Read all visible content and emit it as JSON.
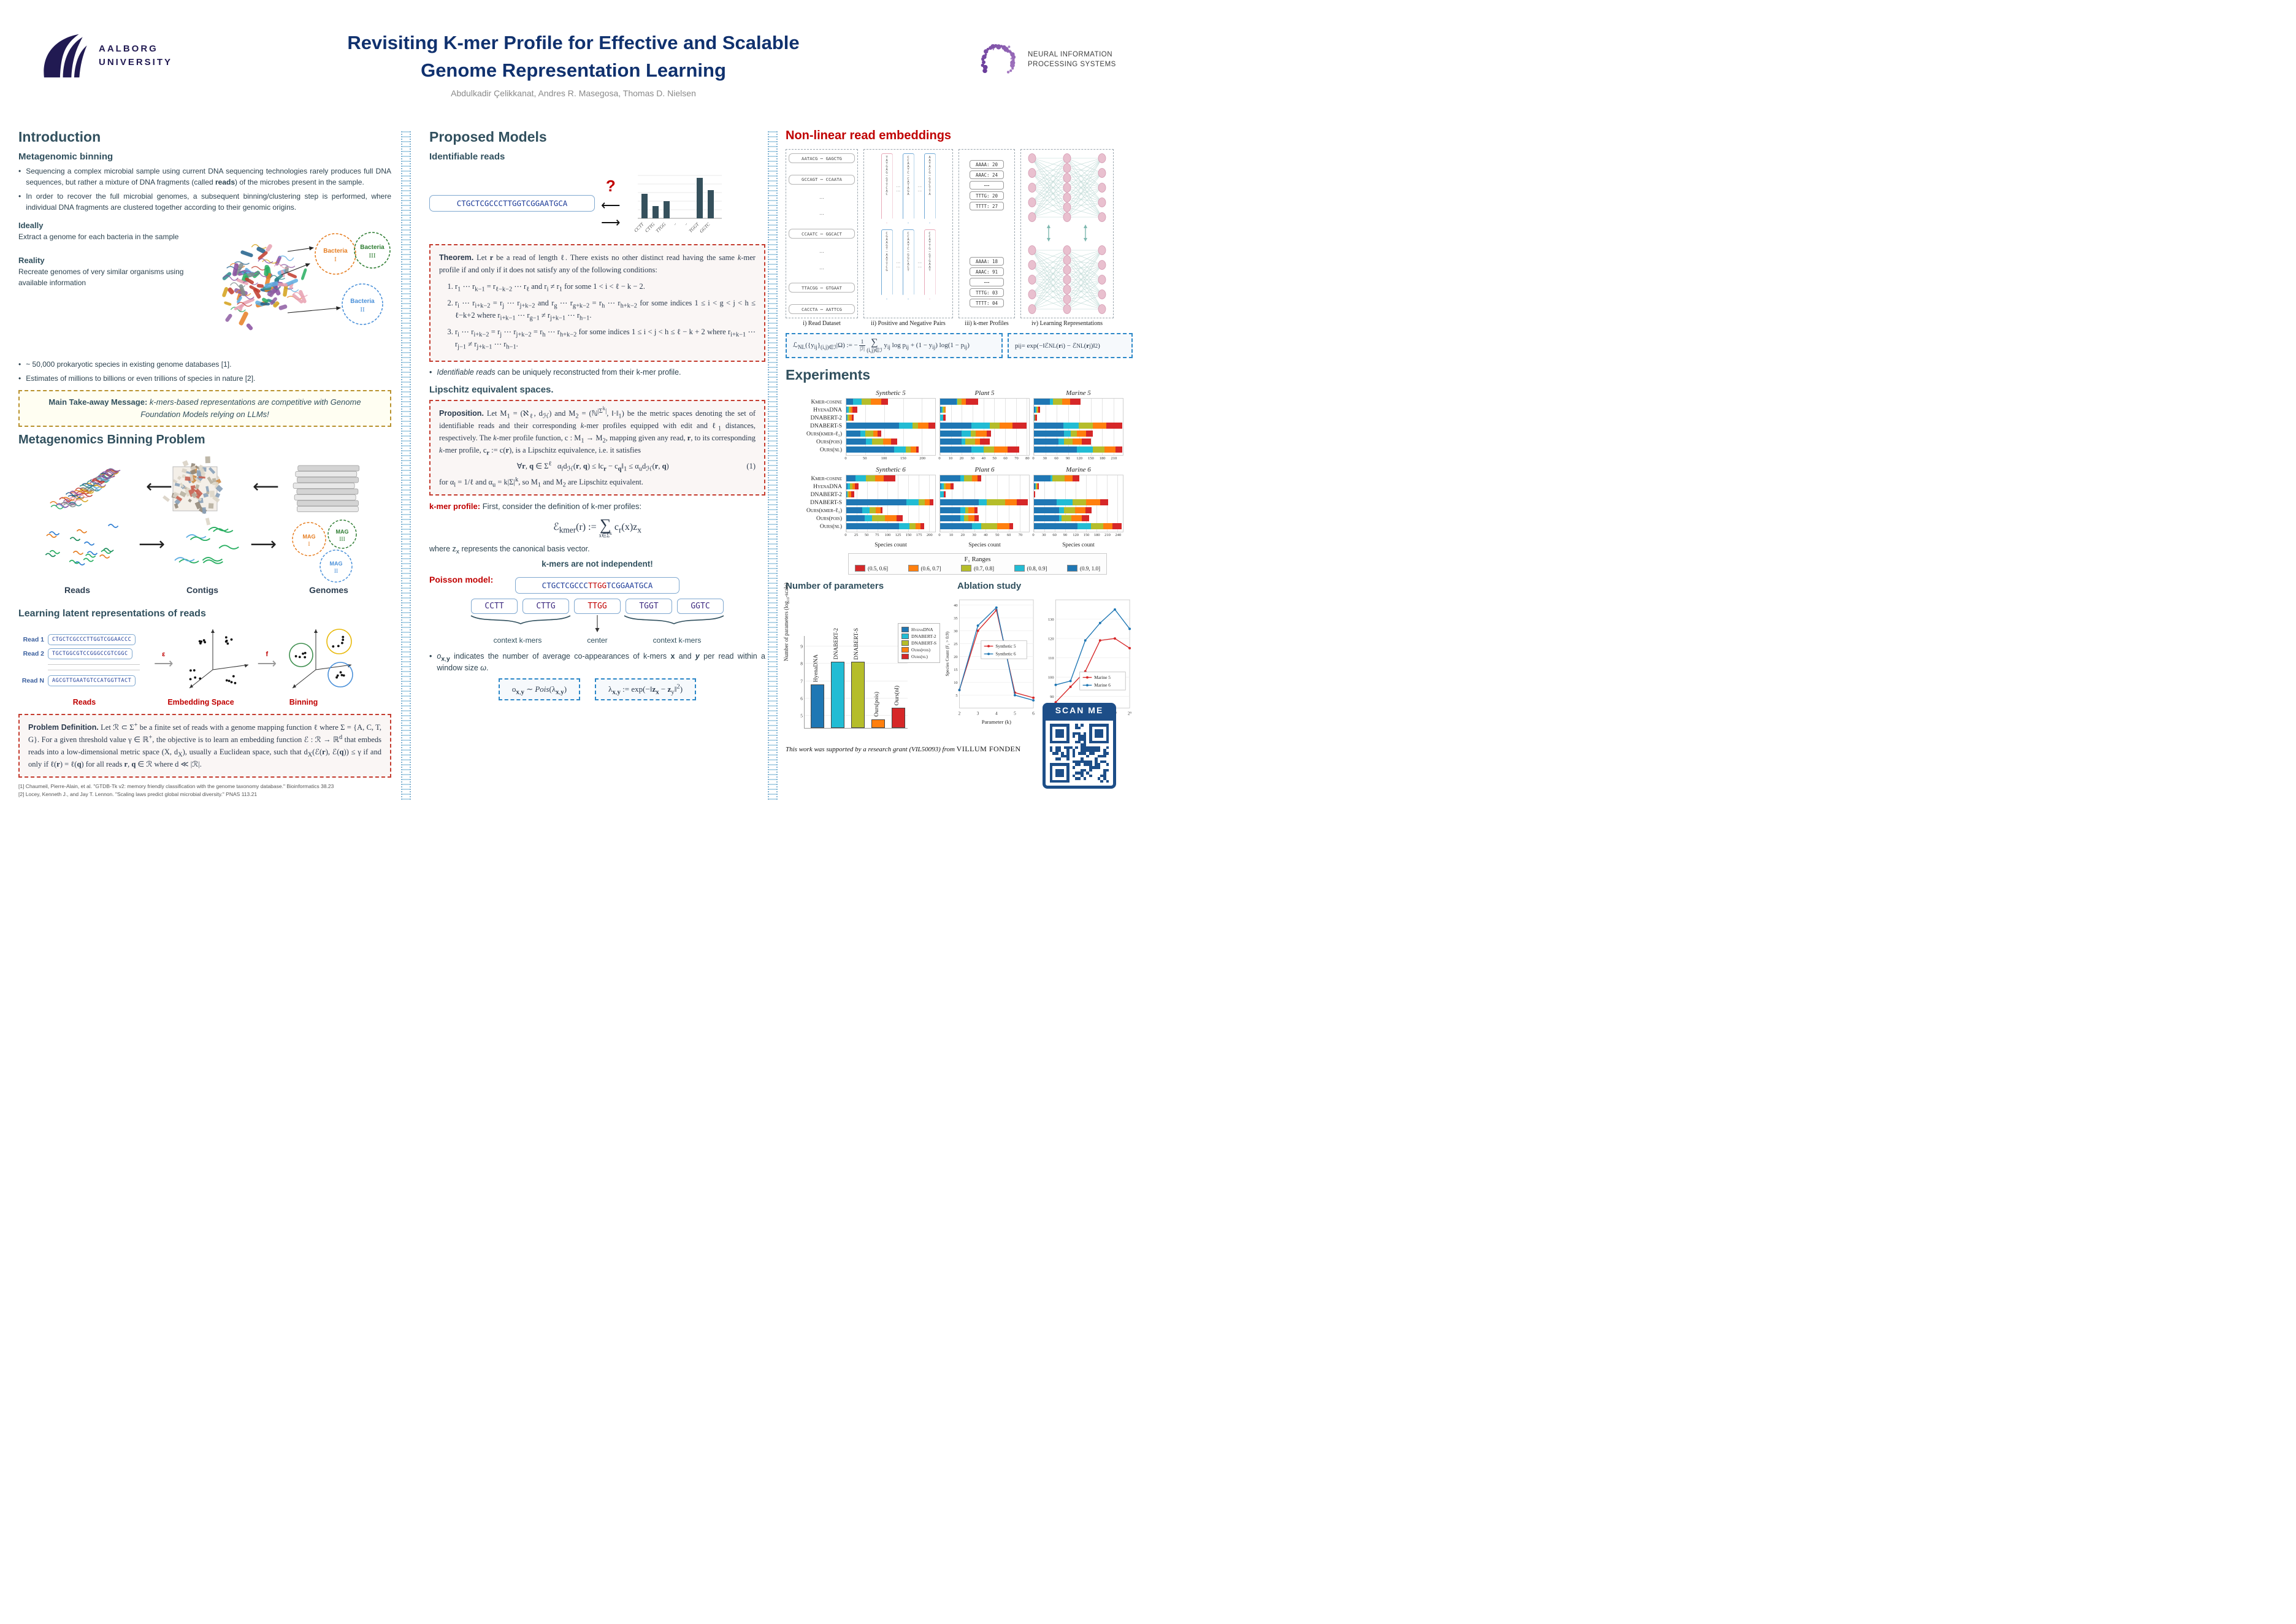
{
  "header": {
    "title_line1": "Revisiting K-mer Profile for Effective and Scalable",
    "title_line2": "Genome Representation Learning",
    "authors": "Abdulkadir Çelikkanat, Andres R. Masegosa, Thomas D. Nielsen",
    "aalborg_line1": "AALBORG",
    "aalborg_line2": "UNIVERSITY",
    "neurips_line1": "NEURAL INFORMATION",
    "neurips_line2": "PROCESSING SYSTEMS"
  },
  "intro": {
    "heading": "Introduction",
    "binning_heading": "Metagenomic binning",
    "bullet1_html": "Sequencing a complex microbial sample using current DNA sequencing technologies rarely produces full DNA sequences, but rather a mixture of DNA fragments (called <b>reads</b>) of the microbes present in the sample.",
    "bullet2_html": "In order to recover the full microbial genomes, a subsequent binning/clustering step is performed, where individual DNA fragments are clustered together according to their genomic origins.",
    "ideally_label": "Ideally",
    "ideally_text": "Extract a genome for each bacteria in the sample",
    "reality_label": "Reality",
    "reality_text": "Recreate genomes of very similar organisms using available information",
    "bacteria": [
      {
        "name": "Bacteria",
        "num": "I",
        "color": "#e67e22"
      },
      {
        "name": "Bacteria",
        "num": "III",
        "color": "#2e7d32"
      },
      {
        "name": "Bacteria",
        "num": "II",
        "color": "#4a90d9"
      }
    ],
    "bullet3": "~ 50,000 prokaryotic species in existing genome databases [1].",
    "bullet4": "Estimates of millions to billions or even trillions of species in nature [2].",
    "takeaway_html": "<b>Main Take-away Message:</b> <i>k-mers-based representations are competitive with Genome Foundation Models relying on LLMs!</i>"
  },
  "binning_problem": {
    "heading": "Metagenomics Binning Problem",
    "labels": [
      "Reads",
      "Contigs",
      "Genomes"
    ],
    "mags": [
      {
        "label": "MAG",
        "num": "I",
        "color": "#e67e22"
      },
      {
        "label": "MAG",
        "num": "III",
        "color": "#2e7d32"
      },
      {
        "label": "MAG",
        "num": "II",
        "color": "#4a90d9"
      }
    ]
  },
  "latent": {
    "heading": "Learning latent representations of reads",
    "reads": [
      {
        "label": "Read 1",
        "seq": "CTGCTCGCCCTTGGTCGGAACCC"
      },
      {
        "label": "Read 2",
        "seq": "TGCTGGCGTCCGGGCCGTCGGC"
      },
      {
        "label": "Read N",
        "seq": "AGCGTTGAATGTCCATGGTTACT"
      }
    ],
    "eps": "ε",
    "f": "f",
    "stages": [
      "Reads",
      "Embedding Space",
      "Binning"
    ],
    "problem_html": "<b style=font-family:sans-serif>Problem Definition.</b> Let ℛ ⊂ Σ<sup>+</sup> be a finite set of reads with a genome mapping function ℓ where Σ = {A, C, T, G}. For a given threshold value γ ∈ ℝ<sup>+</sup>, the objective is to learn an embedding function ℰ : ℛ → ℝ<sup>d</sup> that embeds reads into a low-dimensional metric space (X, d<sub>X</sub>), usually a Euclidean space, such that d<sub>X</sub>(ℰ(<b>r</b>), ℰ(<b>q</b>)) ≤ γ if and only if ℓ(<b>r</b>) = ℓ(<b>q</b>) for all reads <b>r</b>, <b>q</b> ∈ ℛ where d ≪ |ℛ|."
  },
  "references": [
    "[1] Chaumeil, Pierre-Alain, et al. \"GTDB-Tk v2: memory friendly classification with the genome taxonomy database.\" Bioinformatics 38.23",
    "[2] Locey, Kenneth J., and Jay T. Lennon. \"Scaling laws predict global microbial diversity.\" PNAS 113.21"
  ],
  "proposed": {
    "heading": "Proposed Models",
    "identifiable_heading": "Identifiable reads",
    "read_seq": "CTGCTCGCCCTTGGTCGGAATGCA",
    "question_mark": "?",
    "theorem_html": "<b style=font-family:sans-serif>Theorem.</b> Let <b>r</b> be a read of length ℓ. There exists no other distinct read having the same <i>k</i>-mer profile if and only if it does not satisfy any of the following conditions:",
    "conditions_html": [
      "r<sub>1</sub> ⋯ r<sub>k−1</sub> = r<sub>ℓ−k−2</sub> ⋯ r<sub>ℓ</sub> and r<sub>i</sub> ≠ r<sub>1</sub> for some 1 &lt; i &lt; ℓ − k − 2.",
      "r<sub>i</sub> ⋯ r<sub>i+k−2</sub> = r<sub>j</sub> ⋯ r<sub>j+k−2</sub> and r<sub>g</sub> ⋯ r<sub>g+k−2</sub> = r<sub>h</sub> ⋯ r<sub>h+k−2</sub> for some indices 1 ≤ i &lt; g &lt; j &lt; h ≤ ℓ−k+2 where r<sub>i+k−1</sub> ⋯ r<sub>g−1</sub> ≠ r<sub>j+k−1</sub> ⋯ r<sub>h−1</sub>.",
      "r<sub>i</sub> ⋯ r<sub>i+k−2</sub> = r<sub>j</sub> ⋯ r<sub>j+k−2</sub> = r<sub>h</sub> ⋯ r<sub>h+k−2</sub> for some indices 1 ≤ i &lt; j &lt; h ≤ ℓ − k + 2 where r<sub>i+k−1</sub> ⋯ r<sub>j−1</sub> ≠ r<sub>j+k−1</sub> ⋯ r<sub>h−1</sub>."
    ],
    "identifiable_note_html": "<i>Identifiable reads</i> can be uniquely reconstructed from their k-mer profile.",
    "lipschitz_heading": "Lipschitz equivalent spaces.",
    "proposition_html": "<b style=font-family:sans-serif>Proposition.</b> Let M<sub>1</sub> = (ℵ<sub>ℓ</sub>, d<sub>ℋ</sub>) and M<sub>2</sub> = (ℕ<sup>|Σ<sup>k</sup>|</sup>, ‖·‖<sub>1</sub>) be the metric spaces denoting the set of identifiable reads and their corresponding <i>k</i>-mer profiles equipped with edit and ℓ<sub>1</sub> distances, respectively. The <i>k</i>-mer profile function, c : M<sub>1</sub> → M<sub>2</sub>, mapping given any read, <b>r</b>, to its corresponding <i>k</i>-mer profile, c<sub><b>r</b></sub> := c(<b>r</b>), is a Lipschitz equivalence, i.e. it satisfies",
    "prop_eq_html": "∀<b>r</b>, <b>q</b> ∈ Σ<sup>ℓ</sup> &nbsp; α<sub>l</sub>d<sub>ℋ</sub>(<b>r</b>, <b>q</b>) ≤ ‖c<sub><b>r</b></sub> − c<sub><b>q</b></sub>‖<sub>1</sub> ≤ α<sub>u</sub>d<sub>ℋ</sub>(<b>r</b>, <b>q</b>)",
    "eq_number": "(1)",
    "prop_tail_html": "for α<sub>l</sub> = 1/ℓ and α<sub>u</sub> = k|Σ|<sup>k</sup>, so M<sub>1</sub> and M<sub>2</sub> are Lipschitz equivalent.",
    "kmer_profile_label": "k-mer profile:",
    "kmer_profile_text": " First, consider the definition of k-mer profiles:",
    "kmer_formula_html": "ℰ<sub>kmer</sub>(r) := <span class=sumwrap><span class=sumsym>∑</span><span class=sumsub>x∈Σ<sup>k</sup></span></span> c<sub>r</sub>(x)z<sub>x</sub>",
    "basis_note_html": "where z<sub>x</sub> represents the canonical basis vector.",
    "not_independent": "k-mers are not independent!",
    "poisson_label": "Poisson model:",
    "poisson_read_html": "CTGCTCGCCC<span class=seq-red>TTGG</span>TCGGAATGCA",
    "kmers": [
      {
        "t": "CCTT",
        "red": false
      },
      {
        "t": "CTTG",
        "red": false
      },
      {
        "t": "TTGG",
        "red": true
      },
      {
        "t": "TGGT",
        "red": false
      },
      {
        "t": "GGTC",
        "red": false
      }
    ],
    "context_left": "context k-mers",
    "center_label": "center",
    "context_right": "context k-mers",
    "obs_bullet_html": "<i>o</i><sub><b>x</b>,<b>y</b></sub> indicates the number of average co-appearances of k-mers <b>x</b> and <b><i>y</i></b> per read within a window size <i>ω</i>.",
    "pois_box_html": "o<sub><b>x</b>,<b>y</b></sub> ∼ <i>Pois</i>(λ<sub><b>x</b>,<b>y</b></sub>)",
    "lambda_box_html": "λ<sub><b>x</b>,<b>y</b></sub> := exp(−‖<b>z</b><sub><b>x</b></sub> − <b>z</b><sub>y</sub>‖<sup>2</sup>)"
  },
  "nonlinear": {
    "heading": "Non-linear read embeddings",
    "read_dataset": [
      "AATACG ⋯ GAGCTG",
      "GCCAGT ⋯ CCAATA",
      "⋯",
      "⋯",
      "CCAATC ⋯ GGCACT",
      "⋯",
      "⋯",
      "TTACGG ⋯ GTGAAT",
      "CACCTA ⋯ AATTCG"
    ],
    "pairs_top": [
      {
        "seq": "TATGAG⋯GTTCAC",
        "color": "pink"
      },
      {
        "seq": "CCAATC⋯CATAGA",
        "color": "blue"
      },
      {
        "seq": "AATACG⋯GGCTTA",
        "color": "blue"
      }
    ],
    "pairs_bottom": [
      {
        "seq": "CGAAGT⋯AATTCG",
        "color": "blue"
      },
      {
        "seq": "CCAATC⋯GGCACT",
        "color": "blue"
      },
      {
        "seq": "CCATTG⋯GTGAAT",
        "color": "pink"
      }
    ],
    "profiles_top": [
      "AAAA: 20",
      "AAAC: 24",
      "⋯⋯",
      "TTTG: 20",
      "TTTT: 27"
    ],
    "profiles_bottom": [
      "AAAA: 18",
      "AAAC: 91",
      "⋯⋯",
      "TTTG: 03",
      "TTTT: 04"
    ],
    "captions": [
      "i) Read Dataset",
      "ii) Positive and Negative Pairs",
      "iii) k-mer Profiles",
      "iv) Learning Representations"
    ],
    "loss_html": "ℒ<sub>NL</sub>({y<sub>ij</sub>}<sub>(i,j)∈ℐ</sub>|Ω) := −<span class=frac><span>1</span><span>|ℐ|</span></span><span class=sumwrap><span class=sumsym style=font-size:16px>∑</span><span class=sumsub>(i,j)∈ℐ</span></span> y<sub>ij</sub> log p<sub>ij</sub> + (1 − y<sub>ij</sub>) log(1 − p<sub>ij</sub>)",
    "pij_html": "p<sub>ij</sub> = exp(−‖ℰ<sub>NL</sub>(<b>r</b><sub>i</sub>) − ℰ<sub>NL</sub>(<b>r</b><sub>j</sub>)‖<sup>2</sup>)"
  },
  "experiments_heading": "Experiments",
  "params_heading": "Number of parameters",
  "ablation_heading": "Ablation study",
  "scan_me": "SCAN ME",
  "funding_html": "<i>This work was supported by a research grant (VIL50093) from</i> <span class=villum>VILLUM FONDEN</span>",
  "chart_data": {
    "kmer_mini": {
      "type": "bar",
      "categories": [
        "CCTT",
        "CTTG",
        "TTGG",
        "··",
        "··",
        "TGGT",
        "GGTC"
      ],
      "values": [
        40,
        20,
        28,
        0,
        0,
        66,
        46
      ],
      "bar_color": "#35505c"
    },
    "experiments": {
      "type": "stacked-bar-h",
      "methods": [
        "Kmer-cosine",
        "HyenaDNA",
        "DNABERT-2",
        "DNABERT-S",
        "Ours(kmer-ℓ₁)",
        "Ours(pois)",
        "Ours(nl)"
      ],
      "segment_order": [
        "(0.9, 1.0]",
        "(0.8, 0.9]",
        "(0.7, 0.8]",
        "(0.6, 0.7]",
        "(0.5, 0.6]"
      ],
      "segment_colors": [
        "#1f77b4",
        "#22bcd4",
        "#b5bd2a",
        "#ff7f0e",
        "#d62728"
      ],
      "xlabel": "Species count",
      "legend_title": "F₁ Ranges",
      "legend": [
        {
          "label": "(0.5, 0.6]",
          "color": "#d62728"
        },
        {
          "label": "(0.6, 0.7]",
          "color": "#ff7f0e"
        },
        {
          "label": "(0.7, 0.8]",
          "color": "#b5bd2a"
        },
        {
          "label": "(0.8, 0.9]",
          "color": "#22bcd4"
        },
        {
          "label": "(0.9, 1.0]",
          "color": "#1f77b4"
        }
      ],
      "charts": [
        {
          "title": "Synthetic 5",
          "xmax": 235,
          "ticks": [
            0,
            50,
            100,
            150,
            200
          ],
          "rows": [
            [
              18,
              22,
              25,
              28,
              17
            ],
            [
              2,
              4,
              5,
              5,
              14
            ],
            [
              1,
              3,
              4,
              6,
              6
            ],
            [
              140,
              35,
              15,
              28,
              20
            ],
            [
              38,
              13,
              20,
              12,
              9
            ],
            [
              52,
              16,
              30,
              20,
              17
            ],
            [
              127,
              30,
              13,
              14,
              8
            ]
          ]
        },
        {
          "title": "Plant 5",
          "xmax": 82,
          "ticks": [
            0,
            10,
            20,
            30,
            40,
            50,
            60,
            70,
            80
          ],
          "rows": [
            [
              15,
              1,
              4,
              4,
              11
            ],
            [
              1,
              1,
              2,
              1,
              0
            ],
            [
              0,
              3,
              0,
              0,
              2
            ],
            [
              29,
              17,
              9,
              12,
              13
            ],
            [
              20,
              8,
              5,
              10,
              4
            ],
            [
              20,
              3,
              9,
              5,
              9
            ],
            [
              29,
              11,
              10,
              12,
              11
            ]
          ]
        },
        {
          "title": "Marine 5",
          "xmax": 235,
          "ticks": [
            0,
            30,
            60,
            90,
            120,
            150,
            180,
            210
          ],
          "rows": [
            [
              42,
              8,
              25,
              20,
              28
            ],
            [
              4,
              2,
              3,
              3,
              4
            ],
            [
              1,
              1,
              1,
              1,
              4
            ],
            [
              78,
              40,
              38,
              35,
              42
            ],
            [
              80,
              18,
              15,
              25,
              18
            ],
            [
              65,
              15,
              22,
              25,
              24
            ],
            [
              113,
              42,
              32,
              28,
              18
            ]
          ]
        },
        {
          "title": "Synthetic 6",
          "xmax": 215,
          "ticks": [
            0,
            25,
            50,
            75,
            100,
            125,
            150,
            175,
            200
          ],
          "rows": [
            [
              22,
              25,
              22,
              22,
              28
            ],
            [
              3,
              6,
              6,
              6,
              9
            ],
            [
              1,
              2,
              3,
              6,
              8
            ],
            [
              145,
              30,
              15,
              12,
              8
            ],
            [
              38,
              18,
              15,
              12,
              5
            ],
            [
              45,
              18,
              30,
              28,
              15
            ],
            [
              128,
              25,
              15,
              12,
              8
            ]
          ]
        },
        {
          "title": "Plant 6",
          "xmax": 78,
          "ticks": [
            0,
            10,
            20,
            30,
            40,
            50,
            60,
            70
          ],
          "rows": [
            [
              18,
              3,
              7,
              5,
              3
            ],
            [
              1,
              2,
              2,
              4,
              3
            ],
            [
              0,
              3,
              0,
              0,
              2
            ],
            [
              34,
              7,
              16,
              10,
              10
            ],
            [
              18,
              4,
              3,
              5,
              3
            ],
            [
              18,
              3,
              4,
              5,
              4
            ],
            [
              28,
              8,
              14,
              11,
              3
            ]
          ]
        },
        {
          "title": "Marine 6",
          "xmax": 255,
          "ticks": [
            0,
            30,
            60,
            90,
            120,
            150,
            180,
            210,
            240
          ],
          "rows": [
            [
              48,
              5,
              35,
              22,
              20
            ],
            [
              3,
              2,
              3,
              2,
              4
            ],
            [
              0,
              0,
              0,
              0,
              4
            ],
            [
              65,
              45,
              40,
              40,
              22
            ],
            [
              72,
              15,
              30,
              30,
              18
            ],
            [
              72,
              8,
              28,
              30,
              20
            ],
            [
              125,
              38,
              35,
              28,
              25
            ]
          ]
        }
      ]
    },
    "parameters": {
      "type": "bar",
      "ylabel": "Number of parameters (log₁₀-scale)",
      "yticks": [
        5,
        6,
        7,
        8,
        9
      ],
      "ymin": 4.3,
      "ymax": 9.6,
      "categories": [
        "HyenaDNA",
        "DNABERT-2",
        "DNABERT-S",
        "Ours(pois)",
        "Ours(nl)"
      ],
      "values": [
        6.8,
        8.1,
        8.1,
        4.8,
        5.45
      ],
      "colors": [
        "#1f77b4",
        "#22bcd4",
        "#b5bd2a",
        "#ff7f0e",
        "#d62728"
      ]
    },
    "ablation": [
      {
        "type": "line",
        "xlabel": "Parameter (k)",
        "ylabel": "Species Count (F₁ > 0.9)",
        "xlabels": [
          "2",
          "3",
          "4",
          "5",
          "6"
        ],
        "ymin": 0,
        "ymax": 42,
        "yticks": [
          5,
          10,
          15,
          20,
          25,
          30,
          35,
          40
        ],
        "series": [
          {
            "name": "Synthetic 5",
            "color": "#d62728",
            "values": [
              7,
              30,
              38,
              6,
              4
            ]
          },
          {
            "name": "Synthetic 6",
            "color": "#1f77b4",
            "values": [
              7,
              32,
              39,
              5,
              3
            ]
          }
        ]
      },
      {
        "type": "line",
        "xlabel": "Parameter (d)",
        "ylabel": "",
        "xlabels": [
          "2⁴",
          "2⁵",
          "2⁶",
          "2⁷",
          "2⁸",
          "2⁹"
        ],
        "ymin": 84,
        "ymax": 140,
        "yticks": [
          90,
          100,
          110,
          120,
          130
        ],
        "series": [
          {
            "name": "Marine 5",
            "color": "#d62728",
            "values": [
              87,
              95,
              103,
              119,
              120,
              115
            ]
          },
          {
            "name": "Marine 6",
            "color": "#1f77b4",
            "values": [
              96,
              98,
              119,
              128,
              135,
              125
            ]
          }
        ]
      }
    ]
  }
}
